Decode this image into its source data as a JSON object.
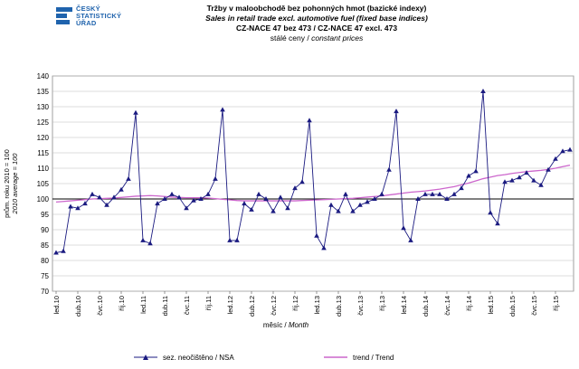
{
  "logo": {
    "line1": "ČESKÝ",
    "line2": "STATISTICKÝ",
    "line3": "ÚŘAD"
  },
  "header": {
    "title_cz": "Tržby v maloobchodě bez pohonných hmot (bazické indexy)",
    "title_en": "Sales in retail trade excl. automotive fuel (fixed base indices)",
    "nace": "CZ-NACE 47 bez 473 / CZ-NACE 47 excl. 473",
    "prices_cz": "stálé ceny / ",
    "prices_en": "constant prices"
  },
  "chart_data": {
    "type": "line",
    "title": "Tržby v maloobchodě bez pohonných hmot (bazické indexy)",
    "subtitle": "Sales in retail trade excl. automotive fuel (fixed base indices)",
    "xlabel_cz": "měsíc / ",
    "xlabel_en": "Month",
    "ylabel_cz": "prům. roku 2010 = 100",
    "ylabel_en": "2010 average = 100",
    "ylim": [
      70,
      140
    ],
    "yticks": [
      70,
      75,
      80,
      85,
      90,
      95,
      100,
      105,
      110,
      115,
      120,
      125,
      130,
      135,
      140
    ],
    "grid": true,
    "reference_line": 100,
    "legend_placement": "bottom",
    "xtick_labels": [
      "led.10",
      "dub.10",
      "čvc.10",
      "říj.10",
      "led.11",
      "dub.11",
      "čvc.11",
      "říj.11",
      "led.12",
      "dub.12",
      "čvc.12",
      "říj.12",
      "led.13",
      "dub.13",
      "čvc.13",
      "říj.13",
      "led.14",
      "dub.14",
      "čvc.14",
      "říj.14",
      "led.15",
      "dub.15",
      "čvc.15",
      "říj.15"
    ],
    "series": [
      {
        "name": "sez. neočištěno / NSA",
        "color": "#1a1a80",
        "marker": "triangle",
        "values": [
          82.5,
          83.0,
          97.5,
          97.0,
          98.5,
          101.5,
          100.5,
          98.0,
          100.5,
          103.0,
          106.5,
          128.0,
          86.5,
          85.5,
          98.5,
          100.0,
          101.5,
          100.5,
          97.0,
          99.5,
          100.0,
          101.5,
          106.5,
          129.0,
          86.5,
          86.5,
          98.5,
          96.5,
          101.5,
          100.0,
          96.0,
          100.5,
          97.0,
          103.5,
          105.5,
          125.5,
          88.0,
          84.0,
          98.0,
          96.0,
          101.5,
          96.0,
          98.0,
          99.0,
          100.0,
          101.5,
          109.5,
          128.5,
          90.5,
          86.5,
          100.0,
          101.5,
          101.5,
          101.5,
          100.0,
          101.5,
          103.5,
          107.5,
          109.0,
          135.0,
          95.5,
          92.0,
          105.5,
          106.0,
          107.0,
          108.5,
          106.0,
          104.5,
          109.5,
          113.0,
          115.5,
          116.0
        ]
      },
      {
        "name": "trend / Trend",
        "color": "#cc66cc",
        "marker": "none",
        "values": [
          99.0,
          99.2,
          99.4,
          99.6,
          99.8,
          100.0,
          100.1,
          100.2,
          100.3,
          100.5,
          100.7,
          100.9,
          101.0,
          101.1,
          101.0,
          100.8,
          100.6,
          100.5,
          100.4,
          100.4,
          100.4,
          100.3,
          100.1,
          99.9,
          99.7,
          99.5,
          99.4,
          99.4,
          99.4,
          99.4,
          99.4,
          99.4,
          99.4,
          99.4,
          99.5,
          99.6,
          99.7,
          99.8,
          99.9,
          100.0,
          100.1,
          100.2,
          100.4,
          100.6,
          100.8,
          101.0,
          101.3,
          101.6,
          101.9,
          102.2,
          102.4,
          102.6,
          102.9,
          103.2,
          103.6,
          104.0,
          104.6,
          105.2,
          105.9,
          106.6,
          107.1,
          107.6,
          107.9,
          108.3,
          108.6,
          108.9,
          109.1,
          109.3,
          109.6,
          110.0,
          110.5,
          111.0
        ]
      }
    ]
  }
}
